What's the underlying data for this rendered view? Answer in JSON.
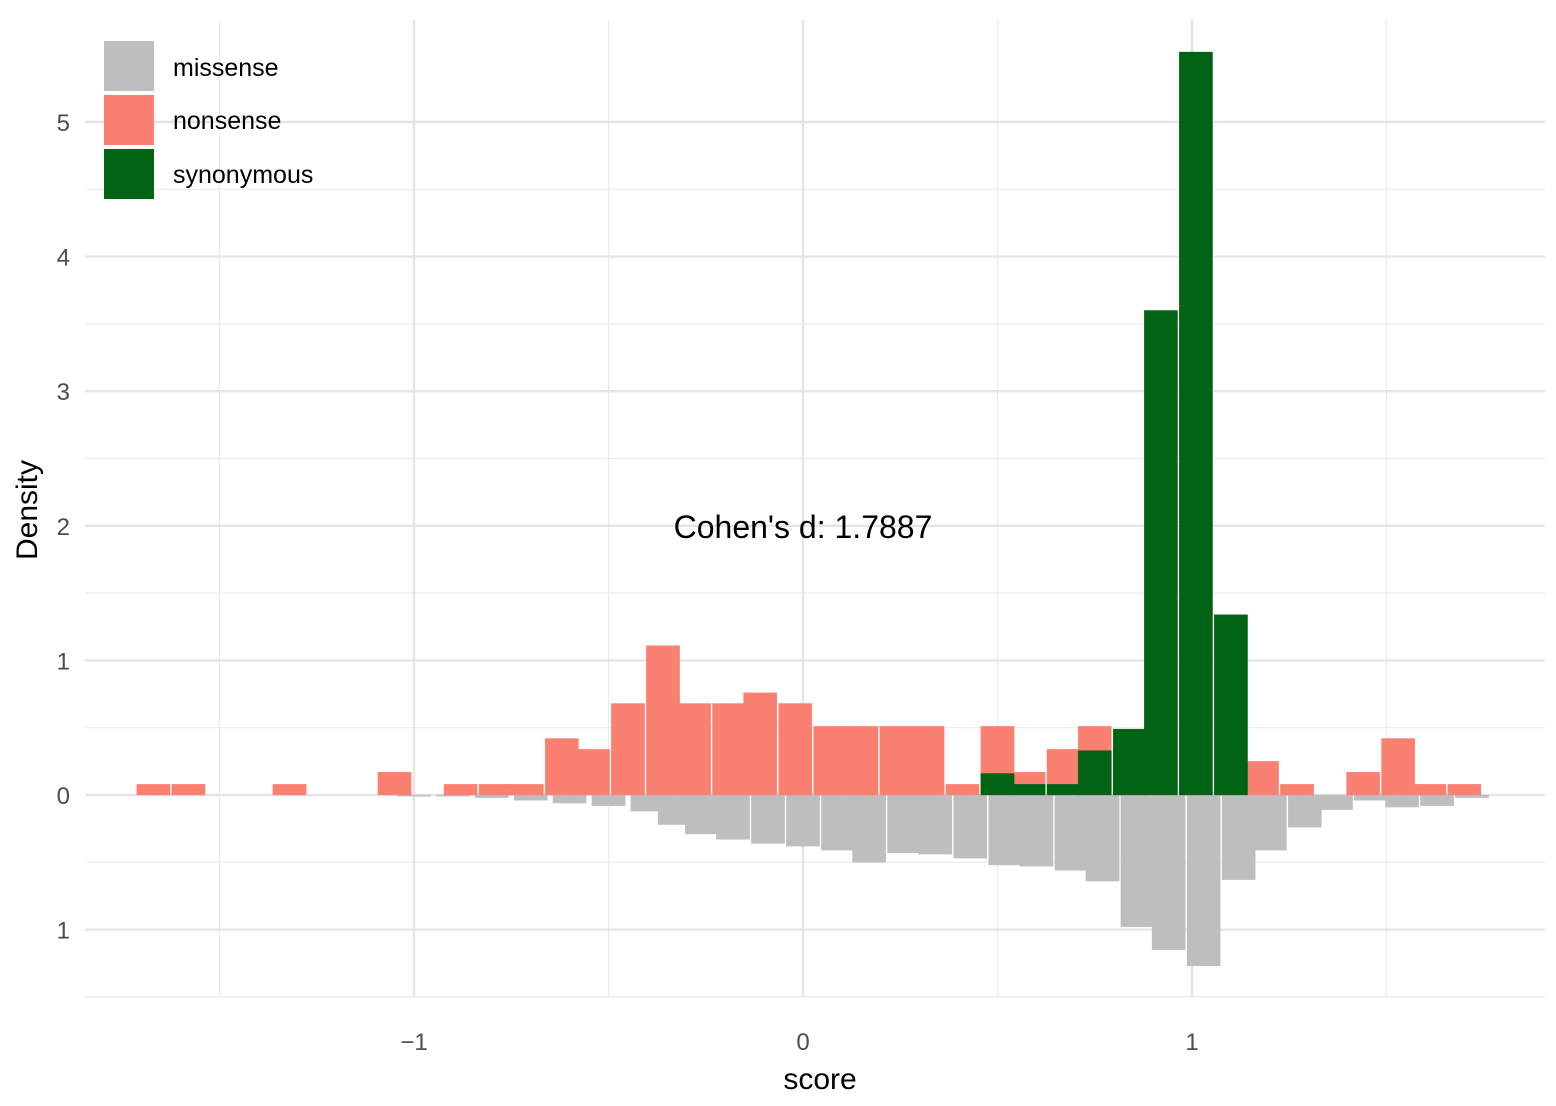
{
  "chart_data": {
    "type": "bar",
    "subtype": "mirrored-histogram",
    "xlabel": "score",
    "ylabel": "Density",
    "xlim": [
      -1.87,
      1.87
    ],
    "ylim": [
      -1.5,
      5.6
    ],
    "x_ticks": [
      -1,
      0,
      1
    ],
    "x_tick_labels": [
      "−1",
      "0",
      "1"
    ],
    "y_ticks": [
      -1,
      0,
      1,
      2,
      3,
      4,
      5
    ],
    "y_tick_labels": [
      "1",
      "0",
      "1",
      "2",
      "3",
      "4",
      "5"
    ],
    "grid": true,
    "legend_position": "top-left",
    "bin_width": 0.0857,
    "annotation": "Cohen's d:  1.7887",
    "annotation_x": 0.0,
    "annotation_y": 2.0,
    "series": [
      {
        "name": "missense",
        "color": "#bebebe",
        "direction": "down",
        "bins": [
          [
            -1.0,
            0.01
          ],
          [
            -0.9,
            0.01
          ],
          [
            -0.8,
            0.02
          ],
          [
            -0.7,
            0.04
          ],
          [
            -0.6,
            0.06
          ],
          [
            -0.5,
            0.08
          ],
          [
            -0.4,
            0.12
          ],
          [
            -0.33,
            0.22
          ],
          [
            -0.26,
            0.29
          ],
          [
            -0.18,
            0.33
          ],
          [
            -0.09,
            0.36
          ],
          [
            0.0,
            0.38
          ],
          [
            0.09,
            0.41
          ],
          [
            0.17,
            0.5
          ],
          [
            0.26,
            0.43
          ],
          [
            0.34,
            0.44
          ],
          [
            0.43,
            0.47
          ],
          [
            0.52,
            0.52
          ],
          [
            0.6,
            0.53
          ],
          [
            0.69,
            0.56
          ],
          [
            0.77,
            0.64
          ],
          [
            0.86,
            0.98
          ],
          [
            0.94,
            1.15
          ],
          [
            1.03,
            1.27
          ],
          [
            1.12,
            0.63
          ],
          [
            1.2,
            0.41
          ],
          [
            1.29,
            0.24
          ],
          [
            1.37,
            0.11
          ],
          [
            1.46,
            0.04
          ],
          [
            1.54,
            0.09
          ],
          [
            1.63,
            0.08
          ],
          [
            1.72,
            0.02
          ]
        ]
      },
      {
        "name": "nonsense",
        "color": "#fa8072",
        "direction": "up",
        "bins": [
          [
            -1.67,
            0.08
          ],
          [
            -1.58,
            0.08
          ],
          [
            -1.32,
            0.08
          ],
          [
            -1.05,
            0.17
          ],
          [
            -0.88,
            0.08
          ],
          [
            -0.79,
            0.08
          ],
          [
            -0.71,
            0.08
          ],
          [
            -0.62,
            0.42
          ],
          [
            -0.54,
            0.34
          ],
          [
            -0.45,
            0.68
          ],
          [
            -0.36,
            1.11
          ],
          [
            -0.28,
            0.68
          ],
          [
            -0.19,
            0.68
          ],
          [
            -0.11,
            0.76
          ],
          [
            -0.02,
            0.68
          ],
          [
            0.07,
            0.51
          ],
          [
            0.15,
            0.51
          ],
          [
            0.24,
            0.51
          ],
          [
            0.32,
            0.51
          ],
          [
            0.41,
            0.08
          ],
          [
            0.5,
            0.51
          ],
          [
            0.58,
            0.17
          ],
          [
            0.67,
            0.34
          ],
          [
            0.75,
            0.51
          ],
          [
            0.84,
            0.34
          ],
          [
            1.18,
            0.25
          ],
          [
            1.27,
            0.08
          ],
          [
            1.44,
            0.17
          ],
          [
            1.53,
            0.42
          ],
          [
            1.61,
            0.08
          ],
          [
            1.7,
            0.08
          ]
        ]
      },
      {
        "name": "synonymous",
        "color": "#006414",
        "direction": "up",
        "bins": [
          [
            0.5,
            0.16
          ],
          [
            0.58,
            0.08
          ],
          [
            0.67,
            0.08
          ],
          [
            0.75,
            0.33
          ],
          [
            0.84,
            0.49
          ],
          [
            0.92,
            3.6
          ],
          [
            1.01,
            5.52
          ],
          [
            1.1,
            1.34
          ]
        ]
      }
    ]
  }
}
